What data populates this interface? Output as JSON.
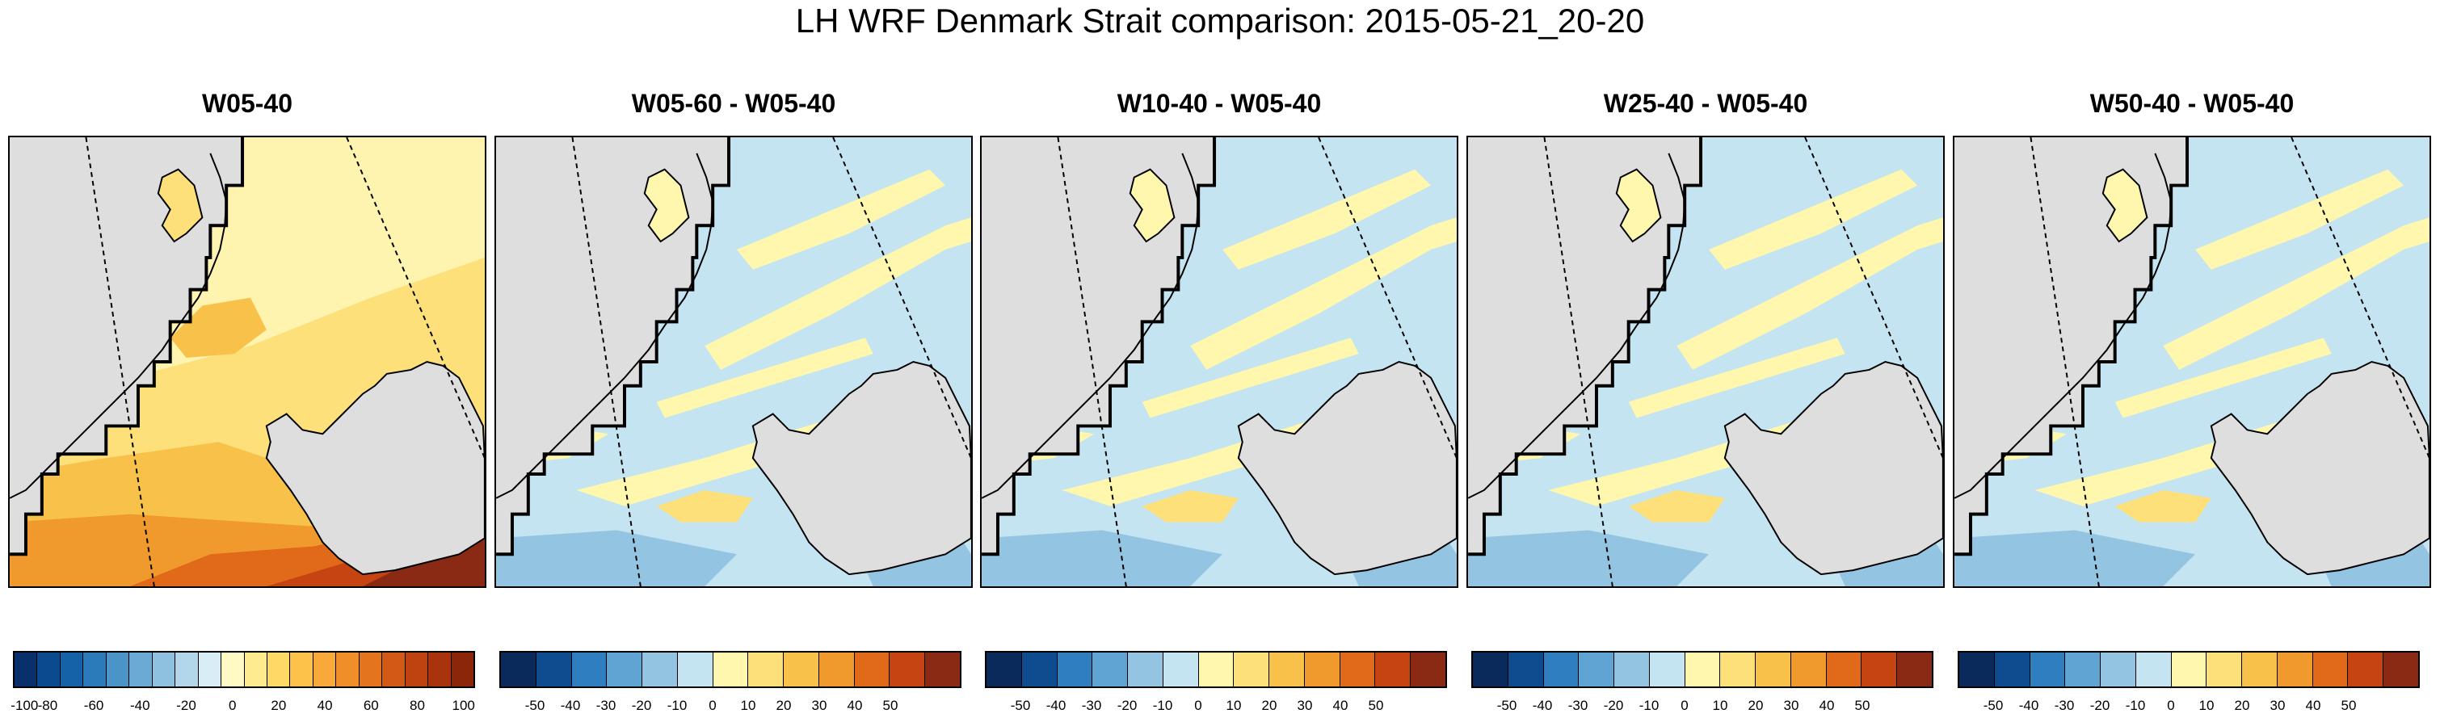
{
  "title": "LH WRF Denmark Strait comparison: 2015-05-21_20-20",
  "panels": [
    {
      "title": "W05-40",
      "kind": "absolute",
      "colorbar": "abs"
    },
    {
      "title": "W05-60 - W05-40",
      "kind": "difference",
      "colorbar": "diff"
    },
    {
      "title": "W10-40 - W05-40",
      "kind": "difference",
      "colorbar": "diff"
    },
    {
      "title": "W25-40 - W05-40",
      "kind": "difference",
      "colorbar": "diff"
    },
    {
      "title": "W50-40 - W05-40",
      "kind": "difference",
      "colorbar": "diff"
    }
  ],
  "colorbars": {
    "abs": {
      "colors": [
        "#08306b",
        "#0b4a8e",
        "#1662a8",
        "#2b7bba",
        "#4a94c8",
        "#6aaad4",
        "#8ec1df",
        "#b3d7ea",
        "#d8edf6",
        "#fff9c4",
        "#ffeb8f",
        "#fed966",
        "#fcc24a",
        "#f8a93a",
        "#f08f2a",
        "#e4741e",
        "#d35916",
        "#bf4310",
        "#a9330c",
        "#8b2708"
      ],
      "labels": [
        "-100",
        "-80",
        "-60",
        "-40",
        "-20",
        "0",
        "20",
        "40",
        "60",
        "80",
        "100"
      ]
    },
    "diff": {
      "colors": [
        "#0a2a5c",
        "#0e4b8f",
        "#2f7ec0",
        "#60a4d4",
        "#93c5e2",
        "#c4e4f1",
        "#fff7ad",
        "#fde07a",
        "#f8c24a",
        "#f09a2e",
        "#e06a1a",
        "#c54412",
        "#8b2a14"
      ],
      "labels": [
        "-50",
        "-40",
        "-30",
        "-20",
        "-10",
        "0",
        "10",
        "20",
        "30",
        "40",
        "50"
      ]
    }
  },
  "colors": {
    "land": "#dedede",
    "ocean_low": "#c4e4f1",
    "ocean_mid": "#fff7ad",
    "abs_base": "#fde07a",
    "abs_high": "#c54412",
    "coastline": "#000000"
  }
}
